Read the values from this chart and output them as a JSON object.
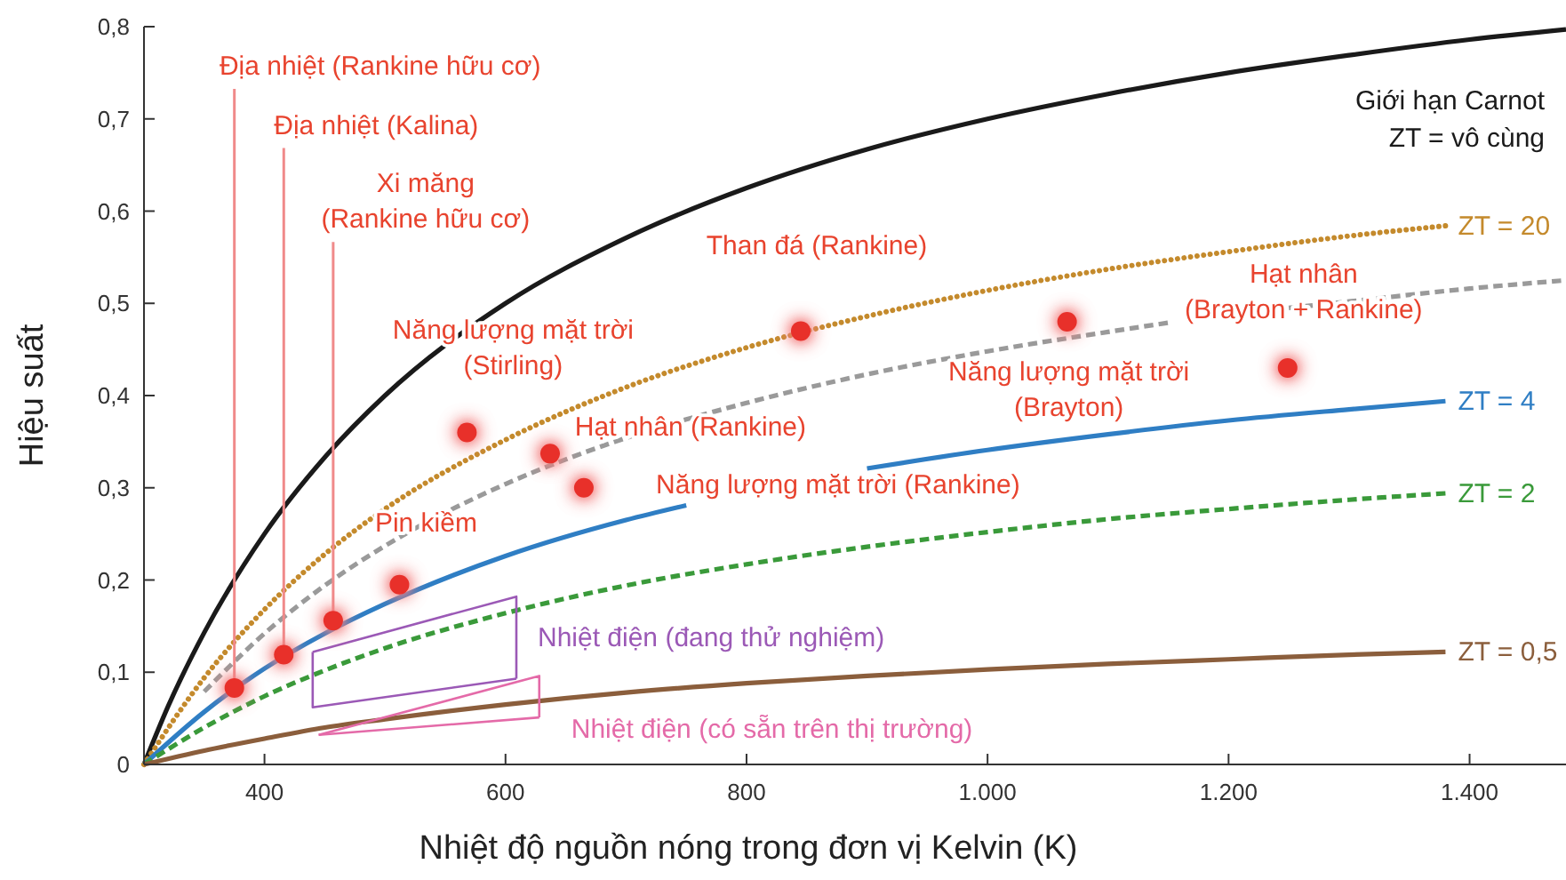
{
  "chart_data": {
    "type": "line",
    "xlabel": "Nhiệt độ nguồn nóng trong đơn vị Kelvin (K)",
    "ylabel": "Hiệu suất",
    "xlim": [
      300,
      1480
    ],
    "ylim": [
      0,
      0.8
    ],
    "xticks": [
      400,
      600,
      800,
      {
        "value": 1000,
        "label": "1.000"
      },
      {
        "value": 1200,
        "label": "1.200"
      },
      {
        "value": 1400,
        "label": "1.400"
      }
    ],
    "yticks": [
      {
        "value": 0,
        "label": "0"
      },
      {
        "value": 0.1,
        "label": "0,1"
      },
      {
        "value": 0.2,
        "label": "0,2"
      },
      {
        "value": 0.3,
        "label": "0,3"
      },
      {
        "value": 0.4,
        "label": "0,4"
      },
      {
        "value": 0.5,
        "label": "0,5"
      },
      {
        "value": 0.6,
        "label": "0,6"
      },
      {
        "value": 0.7,
        "label": "0,7"
      },
      {
        "value": 0.8,
        "label": "0,8"
      }
    ],
    "grid": false,
    "legend": false,
    "series": [
      {
        "name": "Giới hạn Carnot\nZT = vô cùng",
        "color": "#1a1a1a",
        "line_style": "solid",
        "marker": "none",
        "x": [
          300,
          320,
          350,
          400,
          450,
          500,
          600,
          700,
          800,
          900,
          1000,
          1100,
          1200,
          1300,
          1400,
          1480
        ],
        "values": [
          0,
          0.063,
          0.143,
          0.25,
          0.333,
          0.4,
          0.5,
          0.571,
          0.625,
          0.667,
          0.7,
          0.727,
          0.75,
          0.769,
          0.786,
          0.797
        ]
      },
      {
        "name": "ZT = 20",
        "color": "#c48a2c",
        "line_style": "dotted",
        "marker": "none",
        "x": [
          300,
          350,
          400,
          450,
          500,
          600,
          700,
          800,
          900,
          1000,
          1100,
          1200,
          1300,
          1380
        ],
        "values": [
          0,
          0.094,
          0.168,
          0.228,
          0.277,
          0.352,
          0.409,
          0.452,
          0.486,
          0.514,
          0.537,
          0.556,
          0.573,
          0.584
        ]
      },
      {
        "color": "#9a9a9a",
        "line_style": "dashed",
        "marker": "none",
        "x": [
          350,
          400,
          450,
          500,
          600,
          700,
          800,
          900,
          1000,
          1100,
          1150,
          1200,
          1250,
          1300,
          1400,
          1480
        ],
        "values": [
          0.079,
          0.142,
          0.194,
          0.237,
          0.304,
          0.354,
          0.392,
          0.423,
          0.448,
          0.469,
          0.479,
          null,
          0.495,
          0.502,
          0.516,
          0.525
        ]
      },
      {
        "name": "ZT = 4",
        "color": "#2f7ec4",
        "line_style": "solid",
        "marker": "none",
        "x": [
          300,
          350,
          400,
          450,
          500,
          600,
          700,
          750,
          800,
          850,
          900,
          1000,
          1100,
          1200,
          1300,
          1380
        ],
        "values": [
          0,
          0.057,
          0.104,
          0.142,
          0.174,
          0.226,
          0.265,
          0.281,
          null,
          null,
          0.321,
          0.341,
          0.358,
          0.373,
          0.385,
          0.394
        ]
      },
      {
        "name": "ZT = 2",
        "color": "#3a9a3a",
        "line_style": "dashed",
        "marker": "none",
        "x": [
          300,
          350,
          400,
          450,
          500,
          600,
          700,
          800,
          900,
          1000,
          1100,
          1200,
          1300,
          1380
        ],
        "values": [
          0,
          0.04,
          0.074,
          0.102,
          0.126,
          0.164,
          0.194,
          0.217,
          0.236,
          0.252,
          0.266,
          0.277,
          0.287,
          0.294
        ]
      },
      {
        "name": "ZT = 0,5",
        "color": "#8b5e3c",
        "line_style": "solid",
        "marker": "none",
        "x": [
          300,
          350,
          400,
          450,
          500,
          600,
          700,
          800,
          900,
          1000,
          1100,
          1200,
          1300,
          1380
        ],
        "values": [
          0,
          0.015,
          0.028,
          0.04,
          0.049,
          0.065,
          0.078,
          0.088,
          0.096,
          0.103,
          0.109,
          0.114,
          0.119,
          0.122
        ]
      },
      {
        "name": "Nhiệt điện (đang thử nghiệm)",
        "color": "#9b59b6",
        "line_style": "solid",
        "marker": "none",
        "x": [
          440,
          609,
          609
        ],
        "values": [
          0.122,
          0.182,
          0.093
        ]
      },
      {
        "color": "#9b59b6",
        "line_style": "solid",
        "marker": "none",
        "x": [
          440,
          440,
          609
        ],
        "values": [
          0.122,
          0.062,
          0.093
        ]
      },
      {
        "name": "Nhiệt điện (có sẵn trên thị trường)",
        "color": "#e46aa8",
        "line_style": "solid",
        "marker": "none",
        "x": [
          445,
          628,
          628
        ],
        "values": [
          0.032,
          0.096,
          0.051
        ]
      },
      {
        "color": "#e46aa8",
        "line_style": "solid",
        "marker": "none",
        "x": [
          445,
          628
        ],
        "values": [
          0.032,
          0.051
        ]
      },
      {
        "type": "scatter",
        "color": "#e8302a",
        "marker": "circle",
        "x": [
          375,
          416,
          457,
          512,
          568,
          637,
          665,
          845,
          1066,
          1249
        ],
        "values": [
          0.083,
          0.119,
          0.156,
          0.195,
          0.36,
          0.337,
          0.3,
          0.47,
          0.48,
          0.43
        ]
      }
    ],
    "annotations": [
      {
        "text": "Địa nhiệt (Rankine hữu cơ)",
        "x": 375,
        "y": 0.083
      },
      {
        "text": "Địa nhiệt (Kalina)",
        "x": 416,
        "y": 0.119
      },
      {
        "text": "Xi măng\n(Rankine hữu cơ)",
        "x": 457,
        "y": 0.156
      },
      {
        "text": "Pin kiềm",
        "x": 512,
        "y": 0.195
      },
      {
        "text": "Năng lượng mặt trời\n(Stirling)",
        "x": 568,
        "y": 0.36
      },
      {
        "text": "Hạt nhân (Rankine)",
        "x": 637,
        "y": 0.337
      },
      {
        "text": "Năng lượng mặt trời (Rankine)",
        "x": 665,
        "y": 0.3
      },
      {
        "text": "Than đá (Rankine)",
        "x": 845,
        "y": 0.47
      },
      {
        "text": "Năng lượng mặt trời\n(Brayton)",
        "x": 1066,
        "y": 0.48
      },
      {
        "text": "Hạt nhân\n(Brayton + Rankine)",
        "x": 1249,
        "y": 0.43
      }
    ]
  }
}
